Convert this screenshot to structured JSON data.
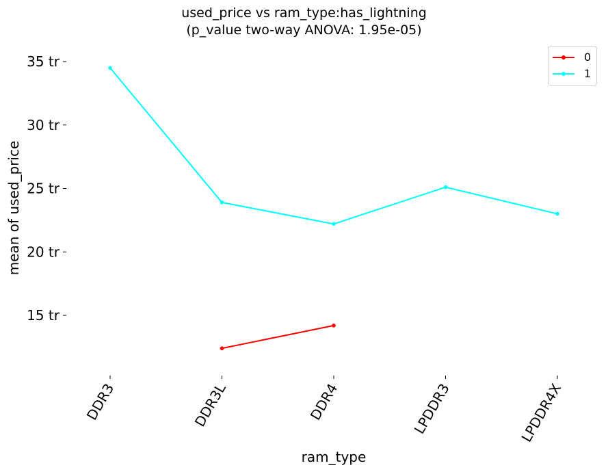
{
  "chart_data": {
    "type": "line",
    "title_line1": "used_price vs ram_type:has_lightning",
    "title_line2": "(p_value two-way ANOVA: 1.95e-05)",
    "xlabel": "ram_type",
    "ylabel": "mean of used_price",
    "categories": [
      "DDR3",
      "DDR3L",
      "DDR4",
      "LPDDR3",
      "LPDDR4X"
    ],
    "yticks": [
      15,
      20,
      25,
      30,
      35
    ],
    "ytick_labels": [
      "15 tr",
      "20 tr",
      "25 tr",
      "30 tr",
      "35 tr"
    ],
    "ylim": [
      10,
      35.5
    ],
    "grid": false,
    "legend_position": "top-right",
    "series": [
      {
        "name": "0",
        "color": "#ff0000",
        "values": [
          null,
          12.4,
          14.2,
          null,
          null
        ]
      },
      {
        "name": "1",
        "color": "#00ffff",
        "values": [
          34.5,
          23.9,
          22.2,
          25.1,
          23.0
        ]
      }
    ]
  }
}
